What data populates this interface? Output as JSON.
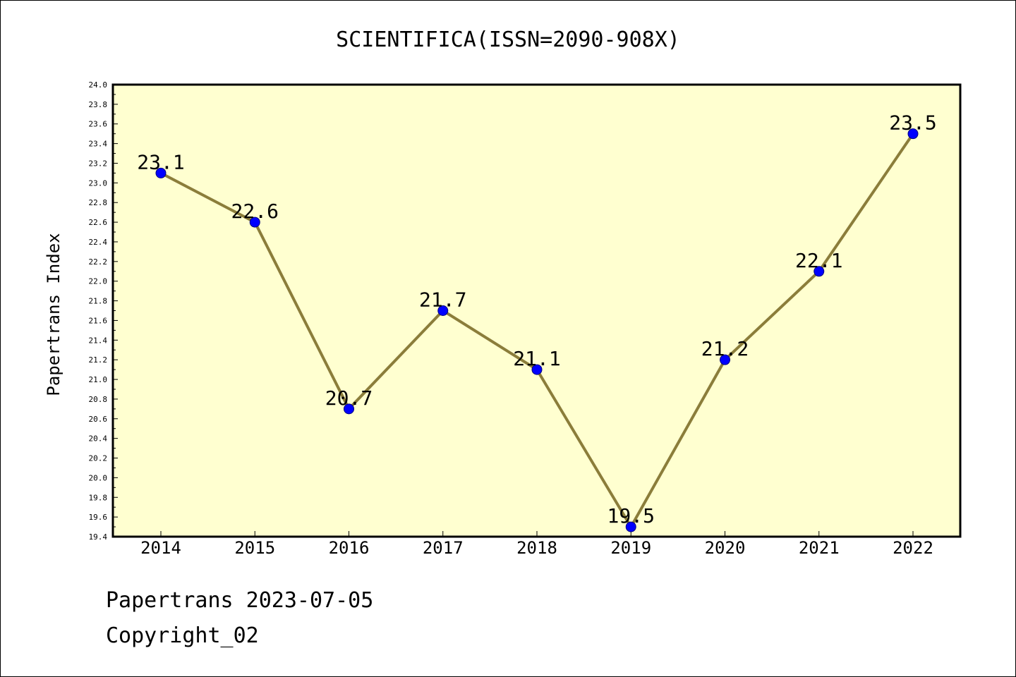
{
  "chart_data": {
    "type": "line",
    "title": "SCIENTIFICA(ISSN=2090-908X)",
    "xlabel": "",
    "ylabel": "Papertrans Index",
    "categories": [
      "2014",
      "2015",
      "2016",
      "2017",
      "2018",
      "2019",
      "2020",
      "2021",
      "2022"
    ],
    "series": [
      {
        "values": [
          23.1,
          22.6,
          20.7,
          21.7,
          21.1,
          19.5,
          21.2,
          22.1,
          23.5
        ],
        "labels": [
          "23.1",
          "22.6",
          "20.7",
          "21.7",
          "21.1",
          "19.5",
          "21.2",
          "22.1",
          "23.5"
        ]
      }
    ],
    "ylim": [
      19.4,
      24.0
    ],
    "yticks": [
      "19.4",
      "19.6",
      "19.8",
      "20.0",
      "20.2",
      "20.4",
      "20.6",
      "20.8",
      "21.0",
      "21.2",
      "21.4",
      "21.6",
      "21.8",
      "22.0",
      "22.2",
      "22.4",
      "22.6",
      "22.8",
      "23.0",
      "23.2",
      "23.4",
      "23.6",
      "23.8",
      "24.0"
    ],
    "grid": false,
    "legend": "none"
  },
  "colors": {
    "plot_background": "#ffffd0",
    "line": "#8b7d3a",
    "marker": "#0000ff",
    "marker_edge": "#000080",
    "axis": "#000000"
  },
  "footer": {
    "line1": "Papertrans 2023-07-05",
    "line2": "Copyright_02"
  }
}
